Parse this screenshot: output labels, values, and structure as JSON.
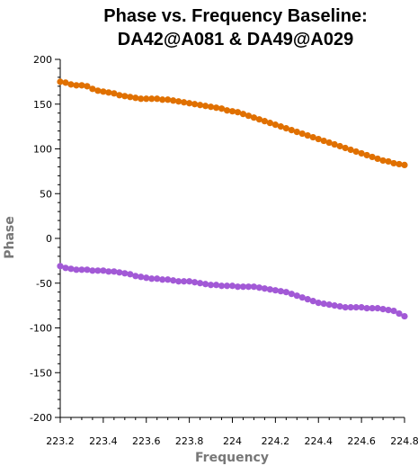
{
  "chart_data": {
    "type": "scatter",
    "title_lines": [
      "Phase vs. Frequency Baseline:",
      "DA42@A081 & DA49@A029"
    ],
    "xlabel": "Frequency",
    "ylabel": "Phase",
    "xlim": [
      223.2,
      224.8
    ],
    "ylim": [
      -200,
      200
    ],
    "xticks": [
      223.2,
      223.4,
      223.6,
      223.8,
      224,
      224.2,
      224.4,
      224.6,
      224.8
    ],
    "xtick_labels": [
      "223.2",
      "223.4",
      "223.6",
      "223.8",
      "224",
      "224.2",
      "224.4",
      "224.6",
      "224.8"
    ],
    "yticks": [
      200,
      150,
      100,
      50,
      0,
      -50,
      -100,
      -150,
      -200
    ],
    "ytick_labels": [
      "200",
      "150",
      "100",
      "50",
      "0",
      "-50",
      "-100",
      "-150",
      "-200"
    ],
    "grid": false,
    "series": [
      {
        "color": "#e07000",
        "x": [
          223.2,
          223.225,
          223.25,
          223.275,
          223.3,
          223.325,
          223.35,
          223.375,
          223.4,
          223.425,
          223.45,
          223.475,
          223.5,
          223.525,
          223.55,
          223.575,
          223.6,
          223.625,
          223.65,
          223.675,
          223.7,
          223.725,
          223.75,
          223.775,
          223.8,
          223.825,
          223.85,
          223.875,
          223.9,
          223.925,
          223.95,
          223.975,
          224.0,
          224.025,
          224.05,
          224.075,
          224.1,
          224.125,
          224.15,
          224.175,
          224.2,
          224.225,
          224.25,
          224.275,
          224.3,
          224.325,
          224.35,
          224.375,
          224.4,
          224.425,
          224.45,
          224.475,
          224.5,
          224.525,
          224.55,
          224.575,
          224.6,
          224.625,
          224.65,
          224.675,
          224.7,
          224.725,
          224.75,
          224.775,
          224.8
        ],
        "y": [
          175,
          174,
          172,
          171,
          171,
          170,
          167,
          165,
          164,
          163,
          162,
          160,
          159,
          158,
          157,
          156,
          156,
          156,
          156,
          155,
          155,
          154,
          153,
          152,
          151,
          150,
          149,
          148,
          147,
          146,
          145,
          143,
          142,
          141,
          139,
          137,
          135,
          133,
          131,
          129,
          127,
          125,
          123,
          121,
          119,
          117,
          115,
          113,
          111,
          109,
          107,
          105,
          103,
          101,
          99,
          97,
          95,
          93,
          91,
          89,
          87,
          86,
          84,
          83,
          82
        ]
      },
      {
        "color": "#a259d6",
        "x": [
          223.2,
          223.225,
          223.25,
          223.275,
          223.3,
          223.325,
          223.35,
          223.375,
          223.4,
          223.425,
          223.45,
          223.475,
          223.5,
          223.525,
          223.55,
          223.575,
          223.6,
          223.625,
          223.65,
          223.675,
          223.7,
          223.725,
          223.75,
          223.775,
          223.8,
          223.825,
          223.85,
          223.875,
          223.9,
          223.925,
          223.95,
          223.975,
          224.0,
          224.025,
          224.05,
          224.075,
          224.1,
          224.125,
          224.15,
          224.175,
          224.2,
          224.225,
          224.25,
          224.275,
          224.3,
          224.325,
          224.35,
          224.375,
          224.4,
          224.425,
          224.45,
          224.475,
          224.5,
          224.525,
          224.55,
          224.575,
          224.6,
          224.625,
          224.65,
          224.675,
          224.7,
          224.725,
          224.75,
          224.775,
          224.8
        ],
        "y": [
          -31,
          -33,
          -34,
          -35,
          -35,
          -35,
          -36,
          -36,
          -36,
          -37,
          -37,
          -38,
          -39,
          -40,
          -42,
          -43,
          -44,
          -45,
          -45,
          -46,
          -46,
          -47,
          -48,
          -48,
          -48,
          -49,
          -50,
          -51,
          -52,
          -52,
          -53,
          -53,
          -53,
          -54,
          -54,
          -54,
          -54,
          -55,
          -56,
          -57,
          -58,
          -59,
          -60,
          -62,
          -64,
          -66,
          -68,
          -70,
          -72,
          -73,
          -74,
          -75,
          -76,
          -77,
          -77,
          -77,
          -77,
          -78,
          -78,
          -78,
          -79,
          -80,
          -81,
          -84,
          -87
        ]
      }
    ]
  }
}
